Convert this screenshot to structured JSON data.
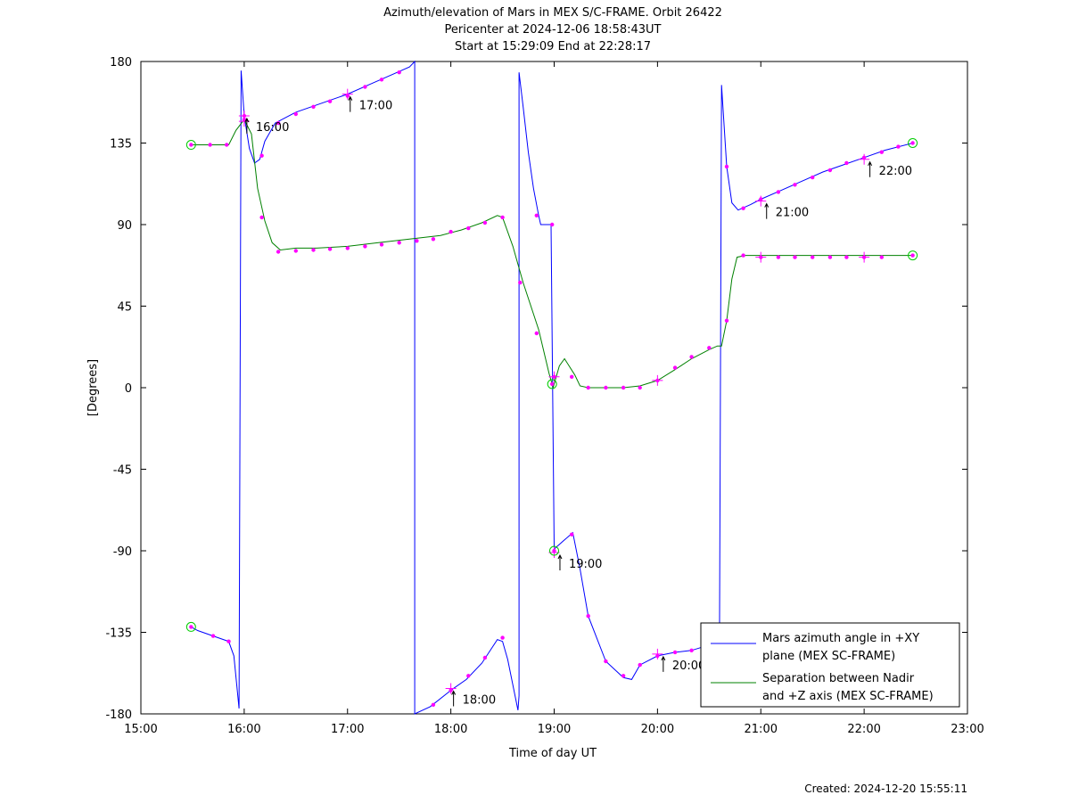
{
  "chart_data": {
    "type": "line",
    "title": "Azimuth/elevation of Mars in MEX S/C-FRAME.  Orbit 26422",
    "subtitle": [
      "Pericenter at 2024-12-06 18:58:43UT",
      "Start at 15:29:09 End at 22:28:17"
    ],
    "xlabel": "Time of day UT",
    "ylabel": "[Degrees]",
    "xlim": [
      15,
      23
    ],
    "ylim": [
      -180,
      180
    ],
    "x_ticks": [
      15,
      16,
      17,
      18,
      19,
      20,
      21,
      22,
      23
    ],
    "x_tick_labels": [
      "15:00",
      "16:00",
      "17:00",
      "18:00",
      "19:00",
      "20:00",
      "21:00",
      "22:00",
      "23:00"
    ],
    "y_ticks": [
      180,
      135,
      90,
      45,
      0,
      -45,
      -90,
      -135,
      -180
    ],
    "y_tick_labels": [
      "180",
      "135",
      "90",
      "45",
      "0",
      "-45",
      "-90",
      "-135",
      "-180"
    ],
    "grid": false,
    "legend_position": "bottom-right",
    "created": "Created: 2024-12-20 15:55:11",
    "series": [
      {
        "name": "Mars azimuth angle in +XY plane (MEX SC-FRAME)",
        "legend_lines": [
          "Mars azimuth angle in +XY",
          "plane (MEX SC-FRAME)"
        ],
        "color": "#0000ff",
        "points": [
          [
            15.486,
            -132
          ],
          [
            15.55,
            -134
          ],
          [
            15.7,
            -137
          ],
          [
            15.85,
            -140
          ],
          [
            15.9,
            -148
          ],
          [
            15.95,
            -177
          ],
          [
            15.97,
            175
          ],
          [
            16.0,
            150
          ],
          [
            16.05,
            132
          ],
          [
            16.1,
            124
          ],
          [
            16.15,
            126
          ],
          [
            16.2,
            136
          ],
          [
            16.3,
            146
          ],
          [
            16.5,
            152
          ],
          [
            16.7,
            156
          ],
          [
            16.9,
            160
          ],
          [
            17.0,
            162
          ],
          [
            17.2,
            167
          ],
          [
            17.4,
            172
          ],
          [
            17.6,
            177
          ],
          [
            17.65,
            180
          ],
          [
            17.65,
            -180
          ],
          [
            17.8,
            -176
          ],
          [
            18.0,
            -167
          ],
          [
            18.15,
            -161
          ],
          [
            18.3,
            -152
          ],
          [
            18.45,
            -139
          ],
          [
            18.5,
            -140
          ],
          [
            18.55,
            -150
          ],
          [
            18.65,
            -178
          ],
          [
            18.66,
            -170
          ],
          [
            18.66,
            174
          ],
          [
            18.7,
            155
          ],
          [
            18.75,
            130
          ],
          [
            18.8,
            110
          ],
          [
            18.85,
            95
          ],
          [
            18.87,
            90
          ],
          [
            18.97,
            90
          ],
          [
            19.0,
            -89
          ],
          [
            19.1,
            -84
          ],
          [
            19.18,
            -80
          ],
          [
            19.25,
            -100
          ],
          [
            19.33,
            -126
          ],
          [
            19.5,
            -151
          ],
          [
            19.67,
            -160
          ],
          [
            19.75,
            -161
          ],
          [
            19.83,
            -153
          ],
          [
            20.0,
            -148
          ],
          [
            20.17,
            -146
          ],
          [
            20.33,
            -145
          ],
          [
            20.5,
            -142
          ],
          [
            20.6,
            -140
          ],
          [
            20.62,
            167
          ],
          [
            20.67,
            122
          ],
          [
            20.72,
            102
          ],
          [
            20.78,
            98
          ],
          [
            20.9,
            101
          ],
          [
            21.0,
            104
          ],
          [
            21.2,
            109
          ],
          [
            21.4,
            114
          ],
          [
            21.6,
            119
          ],
          [
            21.8,
            123
          ],
          [
            22.0,
            127
          ],
          [
            22.2,
            131
          ],
          [
            22.47,
            135
          ]
        ],
        "markers": [
          [
            15.486,
            -132
          ],
          [
            15.7,
            -137
          ],
          [
            15.85,
            -140
          ],
          [
            16.0,
            150
          ],
          [
            16.17,
            128
          ],
          [
            16.33,
            146
          ],
          [
            16.5,
            151
          ],
          [
            16.67,
            155
          ],
          [
            16.83,
            158
          ],
          [
            17.0,
            161
          ],
          [
            17.17,
            166
          ],
          [
            17.33,
            170
          ],
          [
            17.5,
            174
          ],
          [
            17.83,
            -175
          ],
          [
            18.0,
            -167
          ],
          [
            18.17,
            -159
          ],
          [
            18.33,
            -149
          ],
          [
            18.5,
            -138
          ],
          [
            18.83,
            95
          ],
          [
            18.98,
            90
          ],
          [
            19.0,
            -90
          ],
          [
            19.17,
            -81
          ],
          [
            19.33,
            -126
          ],
          [
            19.5,
            -151
          ],
          [
            19.67,
            -159
          ],
          [
            19.83,
            -153
          ],
          [
            20.0,
            -148
          ],
          [
            20.17,
            -146
          ],
          [
            20.33,
            -145
          ],
          [
            20.5,
            -143
          ],
          [
            20.67,
            122
          ],
          [
            20.83,
            99
          ],
          [
            21.0,
            104
          ],
          [
            21.17,
            108
          ],
          [
            21.33,
            112
          ],
          [
            21.5,
            116
          ],
          [
            21.67,
            120
          ],
          [
            21.83,
            124
          ],
          [
            22.0,
            127
          ],
          [
            22.17,
            130
          ],
          [
            22.33,
            133
          ],
          [
            22.47,
            135
          ]
        ]
      },
      {
        "name": "Separation between Nadir and +Z axis (MEX SC-FRAME)",
        "legend_lines": [
          "Separation between Nadir",
          "and +Z axis (MEX SC-FRAME)"
        ],
        "color": "#008000",
        "points": [
          [
            15.486,
            134
          ],
          [
            15.6,
            134
          ],
          [
            15.7,
            134
          ],
          [
            15.85,
            134
          ],
          [
            15.92,
            142
          ],
          [
            16.0,
            148
          ],
          [
            16.07,
            140
          ],
          [
            16.13,
            110
          ],
          [
            16.2,
            92
          ],
          [
            16.27,
            80
          ],
          [
            16.35,
            76
          ],
          [
            16.5,
            77
          ],
          [
            16.7,
            77
          ],
          [
            17.0,
            78
          ],
          [
            17.3,
            80
          ],
          [
            17.6,
            82
          ],
          [
            17.9,
            84
          ],
          [
            18.1,
            87
          ],
          [
            18.3,
            91
          ],
          [
            18.45,
            95
          ],
          [
            18.5,
            94
          ],
          [
            18.6,
            78
          ],
          [
            18.7,
            58
          ],
          [
            18.85,
            32
          ],
          [
            18.95,
            8
          ],
          [
            18.99,
            0
          ],
          [
            19.05,
            12
          ],
          [
            19.1,
            16
          ],
          [
            19.2,
            7
          ],
          [
            19.25,
            1
          ],
          [
            19.33,
            0
          ],
          [
            19.5,
            0
          ],
          [
            19.67,
            0
          ],
          [
            19.83,
            1
          ],
          [
            20.0,
            4
          ],
          [
            20.17,
            10
          ],
          [
            20.33,
            16
          ],
          [
            20.5,
            21
          ],
          [
            20.58,
            23
          ],
          [
            20.62,
            23
          ],
          [
            20.67,
            37
          ],
          [
            20.72,
            60
          ],
          [
            20.77,
            72
          ],
          [
            20.85,
            73
          ],
          [
            21.0,
            73
          ],
          [
            21.5,
            73
          ],
          [
            22.0,
            73
          ],
          [
            22.47,
            73
          ]
        ],
        "markers": [
          [
            15.486,
            134
          ],
          [
            15.67,
            134
          ],
          [
            15.83,
            134
          ],
          [
            16.0,
            148
          ],
          [
            16.17,
            94
          ],
          [
            16.33,
            75
          ],
          [
            16.5,
            75.5
          ],
          [
            16.67,
            76
          ],
          [
            16.83,
            76.5
          ],
          [
            17.0,
            77
          ],
          [
            17.17,
            78
          ],
          [
            17.33,
            79
          ],
          [
            17.5,
            80
          ],
          [
            17.67,
            81
          ],
          [
            17.83,
            82
          ],
          [
            18.0,
            86
          ],
          [
            18.17,
            88
          ],
          [
            18.33,
            91
          ],
          [
            18.5,
            94
          ],
          [
            18.67,
            58
          ],
          [
            18.83,
            30
          ],
          [
            18.98,
            2
          ],
          [
            19.0,
            6
          ],
          [
            19.17,
            6
          ],
          [
            19.33,
            0
          ],
          [
            19.5,
            0
          ],
          [
            19.67,
            0
          ],
          [
            19.83,
            0
          ],
          [
            20.0,
            4
          ],
          [
            20.17,
            11
          ],
          [
            20.33,
            17
          ],
          [
            20.5,
            22
          ],
          [
            20.67,
            37
          ],
          [
            20.83,
            73
          ],
          [
            21.0,
            72
          ],
          [
            21.17,
            72
          ],
          [
            21.33,
            72
          ],
          [
            21.5,
            72
          ],
          [
            21.67,
            72
          ],
          [
            21.83,
            72
          ],
          [
            22.0,
            72
          ],
          [
            22.17,
            72
          ],
          [
            22.47,
            73
          ]
        ]
      }
    ],
    "hour_marks": [
      [
        16.0,
        150
      ],
      [
        17.0,
        162
      ],
      [
        18.0,
        -166
      ],
      [
        19.0,
        -91
      ],
      [
        19.0,
        6
      ],
      [
        20.0,
        -147
      ],
      [
        20.0,
        4
      ],
      [
        21.0,
        103
      ],
      [
        21.0,
        72
      ],
      [
        22.0,
        126
      ],
      [
        22.0,
        72
      ],
      [
        16.0,
        147
      ]
    ],
    "circle_marks": [
      [
        15.486,
        -132
      ],
      [
        15.486,
        134
      ],
      [
        22.47,
        135
      ],
      [
        22.47,
        73
      ],
      [
        18.98,
        2
      ],
      [
        19.0,
        -90
      ]
    ],
    "annotations": [
      {
        "x": 16.0,
        "y": 150,
        "text": "16:00"
      },
      {
        "x": 17.0,
        "y": 162,
        "text": "17:00"
      },
      {
        "x": 18.0,
        "y": -166,
        "text": "18:00"
      },
      {
        "x": 19.03,
        "y": -91,
        "text": "19:00"
      },
      {
        "x": 20.03,
        "y": -147,
        "text": "20:00"
      },
      {
        "x": 21.03,
        "y": 103,
        "text": "21:00"
      },
      {
        "x": 22.03,
        "y": 126,
        "text": "22:00"
      }
    ]
  }
}
